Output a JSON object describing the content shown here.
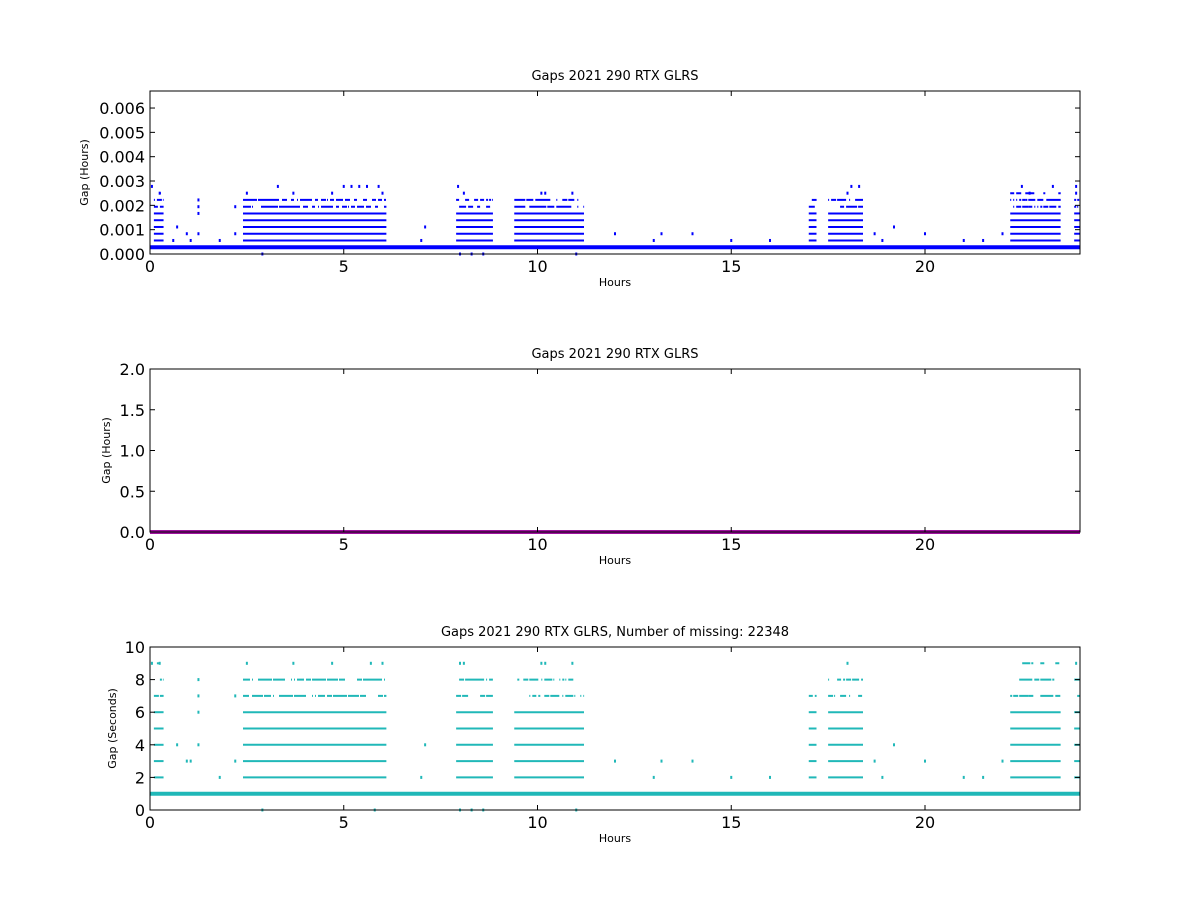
{
  "chart_data": [
    {
      "type": "scatter",
      "title": "Gaps 2021 290 RTX  GLRS",
      "xlabel": "Hours",
      "ylabel": "Gap (Hours)",
      "xlim": [
        0,
        24
      ],
      "ylim": [
        0,
        0.0067
      ],
      "xticks": [
        "0",
        "5",
        "10",
        "15",
        "20"
      ],
      "yticks": [
        "0.000",
        "0.001",
        "0.002",
        "0.003",
        "0.004",
        "0.005",
        "0.006"
      ],
      "color": "#0000ff",
      "baseline_value": 0.000278,
      "baseline_segments": [
        [
          0.0,
          24.0
        ]
      ],
      "bands": [
        {
          "x_start": 0.1,
          "x_end": 0.35,
          "levels": [
            0.000556,
            0.000833,
            0.001111,
            0.001389,
            0.001667,
            0.001944,
            0.002222,
            0.0025
          ]
        },
        {
          "x_start": 2.4,
          "x_end": 6.1,
          "levels": [
            0.000556,
            0.000833,
            0.001111,
            0.001389,
            0.001667,
            0.001944,
            0.002222
          ]
        },
        {
          "x_start": 7.9,
          "x_end": 8.85,
          "levels": [
            0.000556,
            0.000833,
            0.001111,
            0.001389,
            0.001667,
            0.001944,
            0.002222
          ]
        },
        {
          "x_start": 9.4,
          "x_end": 11.2,
          "levels": [
            0.000556,
            0.000833,
            0.001111,
            0.001389,
            0.001667,
            0.001944,
            0.002222
          ]
        },
        {
          "x_start": 17.0,
          "x_end": 17.2,
          "levels": [
            0.000556,
            0.000833,
            0.001111,
            0.001389,
            0.001667,
            0.001944,
            0.002222
          ]
        },
        {
          "x_start": 17.5,
          "x_end": 18.4,
          "levels": [
            0.000556,
            0.000833,
            0.001111,
            0.001389,
            0.001667,
            0.001944,
            0.002222
          ]
        },
        {
          "x_start": 22.2,
          "x_end": 23.5,
          "levels": [
            0.000556,
            0.000833,
            0.001111,
            0.001389,
            0.001667,
            0.001944,
            0.002222,
            0.0025
          ]
        },
        {
          "x_start": 23.85,
          "x_end": 24.0,
          "levels": [
            0.000556,
            0.000833,
            0.001111,
            0.001389,
            0.001667,
            0.001944,
            0.002222
          ]
        }
      ],
      "points": [
        [
          0.05,
          0.002778
        ],
        [
          0.25,
          0.0025
        ],
        [
          0.6,
          0.000556
        ],
        [
          0.7,
          0.001111
        ],
        [
          0.95,
          0.000833
        ],
        [
          1.05,
          0.000556
        ],
        [
          1.25,
          0.002222
        ],
        [
          1.25,
          0.001944
        ],
        [
          1.25,
          0.001667
        ],
        [
          1.25,
          0.000833
        ],
        [
          1.8,
          0.000556
        ],
        [
          2.2,
          0.001944
        ],
        [
          2.2,
          0.000833
        ],
        [
          2.5,
          0.0025
        ],
        [
          3.3,
          0.002778
        ],
        [
          3.7,
          0.0025
        ],
        [
          4.7,
          0.0025
        ],
        [
          5.0,
          0.002778
        ],
        [
          5.2,
          0.002778
        ],
        [
          5.4,
          0.002778
        ],
        [
          5.6,
          0.002778
        ],
        [
          5.9,
          0.002778
        ],
        [
          6.0,
          0.0025
        ],
        [
          2.9,
          0.0
        ],
        [
          7.1,
          0.001111
        ],
        [
          7.0,
          0.000556
        ],
        [
          7.95,
          0.002778
        ],
        [
          8.1,
          0.0025
        ],
        [
          8.0,
          0.0
        ],
        [
          8.3,
          0.0
        ],
        [
          8.6,
          0.0
        ],
        [
          10.1,
          0.0025
        ],
        [
          10.2,
          0.0025
        ],
        [
          10.9,
          0.0025
        ],
        [
          11.0,
          0.0
        ],
        [
          12.0,
          0.000833
        ],
        [
          13.0,
          0.000556
        ],
        [
          13.2,
          0.000833
        ],
        [
          14.0,
          0.000833
        ],
        [
          15.0,
          0.000556
        ],
        [
          16.0,
          0.000556
        ],
        [
          18.0,
          0.0025
        ],
        [
          18.1,
          0.002778
        ],
        [
          18.3,
          0.002778
        ],
        [
          18.7,
          0.000833
        ],
        [
          18.9,
          0.000556
        ],
        [
          19.2,
          0.001111
        ],
        [
          20.0,
          0.000833
        ],
        [
          21.0,
          0.000556
        ],
        [
          21.5,
          0.000556
        ],
        [
          22.0,
          0.000833
        ],
        [
          22.5,
          0.002778
        ],
        [
          22.7,
          0.0025
        ],
        [
          23.3,
          0.002778
        ],
        [
          23.9,
          0.0025
        ],
        [
          23.9,
          0.002778
        ]
      ]
    },
    {
      "type": "scatter",
      "title": "Gaps 2021 290 RTX  GLRS",
      "xlabel": "Hours",
      "ylabel": "Gap (Hours)",
      "xlim": [
        0,
        24
      ],
      "ylim": [
        0,
        2.0
      ],
      "xticks": [
        "0",
        "5",
        "10",
        "15",
        "20"
      ],
      "yticks": [
        "0.0",
        "0.5",
        "1.0",
        "1.5",
        "2.0"
      ],
      "color": "#a010a0",
      "baseline_value": 0.0,
      "baseline_segments": [
        [
          0.0,
          24.0
        ]
      ],
      "bands": [],
      "points": []
    },
    {
      "type": "scatter",
      "title": "Gaps 2021 290 RTX  GLRS, Number of missing: 22348",
      "xlabel": "Hours",
      "ylabel": "Gap (Seconds)",
      "xlim": [
        0,
        24
      ],
      "ylim": [
        0,
        10
      ],
      "xticks": [
        "0",
        "5",
        "10",
        "15",
        "20"
      ],
      "yticks": [
        "0",
        "2",
        "4",
        "6",
        "8",
        "10"
      ],
      "color": "#20b8b8",
      "baseline_value": 1,
      "baseline_segments": [
        [
          0.0,
          24.0
        ]
      ],
      "bands": [
        {
          "x_start": 0.1,
          "x_end": 0.35,
          "levels": [
            2,
            3,
            4,
            5,
            6,
            7,
            8,
            9
          ]
        },
        {
          "x_start": 2.4,
          "x_end": 6.1,
          "levels": [
            2,
            3,
            4,
            5,
            6,
            7,
            8
          ]
        },
        {
          "x_start": 7.9,
          "x_end": 8.85,
          "levels": [
            2,
            3,
            4,
            5,
            6,
            7,
            8
          ]
        },
        {
          "x_start": 9.4,
          "x_end": 11.2,
          "levels": [
            2,
            3,
            4,
            5,
            6,
            7,
            8
          ]
        },
        {
          "x_start": 17.0,
          "x_end": 17.2,
          "levels": [
            2,
            3,
            4,
            5,
            6,
            7,
            8
          ]
        },
        {
          "x_start": 17.5,
          "x_end": 18.4,
          "levels": [
            2,
            3,
            4,
            5,
            6,
            7,
            8
          ]
        },
        {
          "x_start": 22.2,
          "x_end": 23.5,
          "levels": [
            2,
            3,
            4,
            5,
            6,
            7,
            8,
            9
          ]
        },
        {
          "x_start": 23.85,
          "x_end": 24.0,
          "levels": [
            2,
            3,
            4,
            5,
            6,
            7,
            8
          ]
        }
      ],
      "points": [
        [
          0.05,
          9
        ],
        [
          0.25,
          9
        ],
        [
          0.7,
          4
        ],
        [
          0.95,
          3
        ],
        [
          1.05,
          3
        ],
        [
          1.25,
          8
        ],
        [
          1.25,
          7
        ],
        [
          1.25,
          6
        ],
        [
          1.25,
          4
        ],
        [
          1.8,
          2
        ],
        [
          2.2,
          7
        ],
        [
          2.2,
          3
        ],
        [
          2.5,
          9
        ],
        [
          3.7,
          9
        ],
        [
          4.7,
          9
        ],
        [
          5.7,
          9
        ],
        [
          6.0,
          9
        ],
        [
          2.9,
          0
        ],
        [
          5.8,
          0
        ],
        [
          7.1,
          4
        ],
        [
          7.0,
          2
        ],
        [
          8.0,
          9
        ],
        [
          8.1,
          9
        ],
        [
          8.0,
          0
        ],
        [
          8.3,
          0
        ],
        [
          8.6,
          0
        ],
        [
          10.1,
          9
        ],
        [
          10.2,
          9
        ],
        [
          10.9,
          9
        ],
        [
          11.0,
          0
        ],
        [
          12.0,
          3
        ],
        [
          13.0,
          2
        ],
        [
          13.2,
          3
        ],
        [
          14.0,
          3
        ],
        [
          15.0,
          2
        ],
        [
          16.0,
          2
        ],
        [
          18.0,
          9
        ],
        [
          18.7,
          3
        ],
        [
          18.9,
          2
        ],
        [
          19.2,
          4
        ],
        [
          20.0,
          3
        ],
        [
          21.0,
          2
        ],
        [
          21.5,
          2
        ],
        [
          22.0,
          3
        ],
        [
          23.9,
          9
        ]
      ]
    }
  ]
}
